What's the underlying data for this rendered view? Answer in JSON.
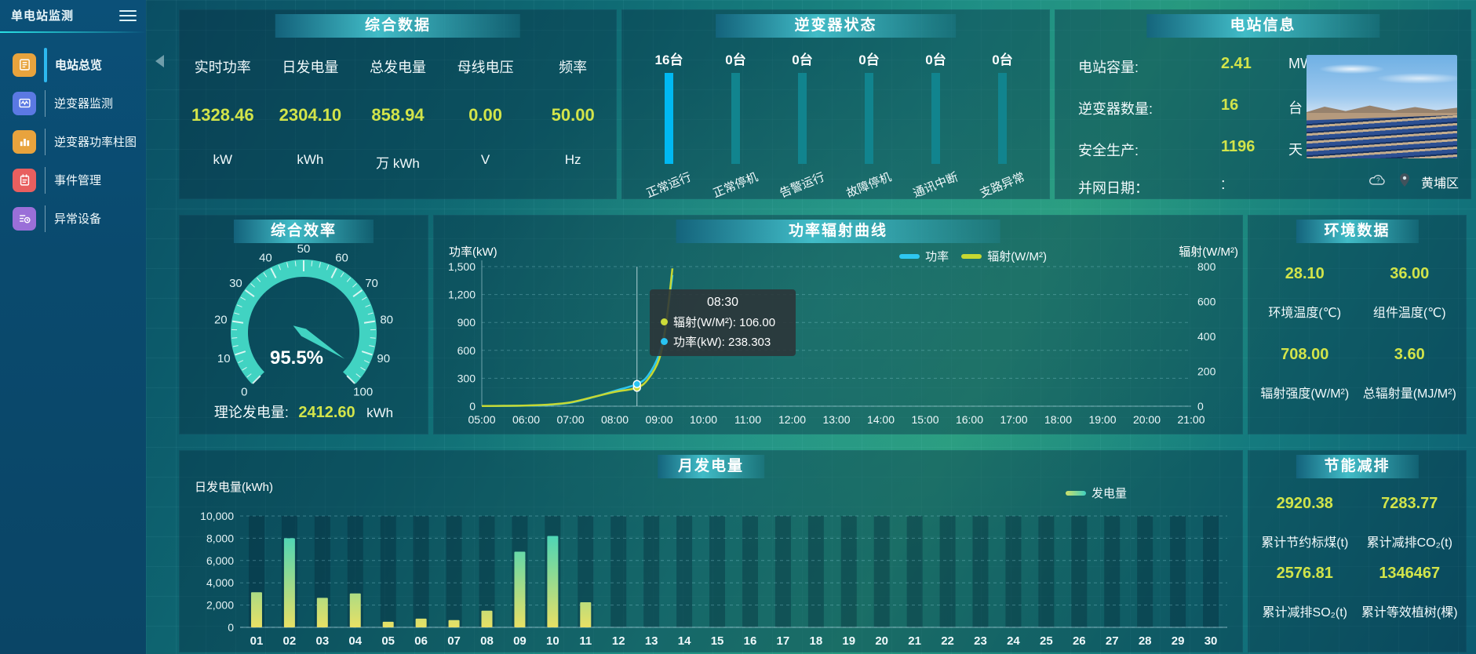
{
  "sidebar": {
    "title": "单电站监测",
    "items": [
      {
        "label": "电站总览",
        "icon": "station-overview-icon",
        "color": "#e8a33d",
        "active": true
      },
      {
        "label": "逆变器监测",
        "icon": "inverter-monitor-icon",
        "color": "#5b79e3",
        "active": false
      },
      {
        "label": "逆变器功率柱图",
        "icon": "inverter-power-bars-icon",
        "color": "#e8a33d",
        "active": false
      },
      {
        "label": "事件管理",
        "icon": "event-management-icon",
        "color": "#e85f5f",
        "active": false
      },
      {
        "label": "异常设备",
        "icon": "abnormal-device-icon",
        "color": "#9a6fd8",
        "active": false
      }
    ]
  },
  "panels": {
    "summary": {
      "title": "综合数据",
      "metrics": [
        {
          "label": "实时功率",
          "value": "1328.46",
          "unit": "kW"
        },
        {
          "label": "日发电量",
          "value": "2304.10",
          "unit": "kWh"
        },
        {
          "label": "总发电量",
          "value": "858.94",
          "unit": "万 kWh"
        },
        {
          "label": "母线电压",
          "value": "0.00",
          "unit": "V"
        },
        {
          "label": "频率",
          "value": "50.00",
          "unit": "Hz"
        }
      ]
    },
    "inverter_status": {
      "title": "逆变器状态",
      "bars": [
        {
          "count": "16台",
          "label": "正常运行",
          "highlight": true
        },
        {
          "count": "0台",
          "label": "正常停机",
          "highlight": false
        },
        {
          "count": "0台",
          "label": "告警运行",
          "highlight": false
        },
        {
          "count": "0台",
          "label": "故障停机",
          "highlight": false
        },
        {
          "count": "0台",
          "label": "通讯中断",
          "highlight": false
        },
        {
          "count": "0台",
          "label": "支路异常",
          "highlight": false
        }
      ]
    },
    "station_info": {
      "title": "电站信息",
      "rows": [
        {
          "label": "电站容量:",
          "value": "2.41",
          "unit": "MW"
        },
        {
          "label": "逆变器数量:",
          "value": "16",
          "unit": "台"
        },
        {
          "label": "安全生产:",
          "value": "1196",
          "unit": "天"
        },
        {
          "label": "并网日期：",
          "value": ":",
          "unit": ""
        }
      ],
      "location": "黄埔区"
    },
    "efficiency": {
      "title": "综合效率",
      "footer_label": "理论发电量:",
      "footer_value": "2412.60",
      "footer_unit": "kWh"
    },
    "power_curve": {
      "title": "功率辐射曲线"
    },
    "environment": {
      "title": "环境数据",
      "metrics": [
        {
          "value": "28.10",
          "label": "环境温度(℃)"
        },
        {
          "value": "36.00",
          "label": "组件温度(℃)"
        },
        {
          "value": "708.00",
          "label": "辐射强度(W/M²)"
        },
        {
          "value": "3.60",
          "label": "总辐射量(MJ/M²)"
        }
      ]
    },
    "monthly": {
      "title": "月发电量"
    },
    "savings": {
      "title": "节能减排",
      "metrics": [
        {
          "value": "2920.38",
          "label": "累计节约标煤(t)"
        },
        {
          "value": "7283.77",
          "label": "累计减排CO₂(t)"
        },
        {
          "value": "2576.81",
          "label": "累计减排SO₂(t)"
        },
        {
          "value": "1346467",
          "label": "累计等效植树(棵)"
        }
      ]
    }
  },
  "chart_data": [
    {
      "id": "efficiency_gauge",
      "type": "gauge",
      "title": "综合效率",
      "min": 0,
      "max": 100,
      "tick_interval": 10,
      "value": 95.5,
      "value_label": "95.5%",
      "arc_color": "#41d3c2"
    },
    {
      "id": "power_radiation_curve",
      "type": "line",
      "title": "功率辐射曲线",
      "x_ticks": [
        "05:00",
        "06:00",
        "07:00",
        "08:00",
        "09:00",
        "10:00",
        "11:00",
        "12:00",
        "13:00",
        "14:00",
        "15:00",
        "16:00",
        "17:00",
        "18:00",
        "19:00",
        "20:00",
        "21:00"
      ],
      "x_range_hours": [
        5,
        21
      ],
      "left_axis": {
        "label": "功率(kW)",
        "min": 0,
        "max": 1500,
        "ticks": [
          0,
          300,
          600,
          900,
          1200,
          1500
        ]
      },
      "right_axis": {
        "label": "辐射(W/M²)",
        "min": 0,
        "max": 800,
        "ticks": [
          0,
          200,
          400,
          600,
          800
        ]
      },
      "series": [
        {
          "name": "功率",
          "axis": "left",
          "color": "#2ec7f0",
          "points": [
            [
              5,
              2
            ],
            [
              5.5,
              3
            ],
            [
              6,
              6
            ],
            [
              6.5,
              14
            ],
            [
              7,
              38
            ],
            [
              7.5,
              95
            ],
            [
              8,
              165
            ],
            [
              8.5,
              238.3
            ],
            [
              8.75,
              330
            ],
            [
              9,
              560
            ],
            [
              9.15,
              880
            ],
            [
              9.3,
              1410
            ]
          ]
        },
        {
          "name": "辐射(W/M²)",
          "axis": "right",
          "color": "#c6d832",
          "points": [
            [
              5,
              1
            ],
            [
              5.5,
              2
            ],
            [
              6,
              4
            ],
            [
              6.5,
              9
            ],
            [
              7,
              22
            ],
            [
              7.5,
              52
            ],
            [
              8,
              82
            ],
            [
              8.5,
              106
            ],
            [
              8.75,
              155
            ],
            [
              9,
              270
            ],
            [
              9.15,
              460
            ],
            [
              9.3,
              790
            ]
          ]
        }
      ],
      "tooltip": {
        "time": "08:30",
        "x_hour": 8.5,
        "rows": [
          {
            "name": "辐射(W/M²):",
            "value": "106.00",
            "color": "#cddc39"
          },
          {
            "name": "功率(kW):",
            "value": "238.303",
            "color": "#29c4f2"
          }
        ]
      },
      "grid": "dashed-horizontal",
      "legend_position": "top-right"
    },
    {
      "id": "monthly_generation",
      "type": "bar",
      "title": "月发电量",
      "ylabel": "日发电量(kWh)",
      "ylim": [
        0,
        10000
      ],
      "yticks": [
        0,
        2000,
        4000,
        6000,
        8000,
        10000
      ],
      "legend": "发电量",
      "categories": [
        "01",
        "02",
        "03",
        "04",
        "05",
        "06",
        "07",
        "08",
        "09",
        "10",
        "11",
        "12",
        "13",
        "14",
        "15",
        "16",
        "17",
        "18",
        "19",
        "20",
        "21",
        "22",
        "23",
        "24",
        "25",
        "26",
        "27",
        "28",
        "29",
        "30"
      ],
      "values": [
        3150,
        8000,
        2650,
        3050,
        500,
        780,
        650,
        1500,
        6800,
        8200,
        2250,
        0,
        0,
        0,
        0,
        0,
        0,
        0,
        0,
        0,
        0,
        0,
        0,
        0,
        0,
        0,
        0,
        0,
        0,
        0
      ],
      "bar_gradient": [
        "#e8e065",
        "#2fd3c8"
      ]
    },
    {
      "id": "inverter_status_bars",
      "type": "bar",
      "title": "逆变器状态",
      "unit": "台",
      "categories": [
        "正常运行",
        "正常停机",
        "告警运行",
        "故障停机",
        "通讯中断",
        "支路异常"
      ],
      "values": [
        16,
        0,
        0,
        0,
        0,
        0
      ]
    }
  ]
}
